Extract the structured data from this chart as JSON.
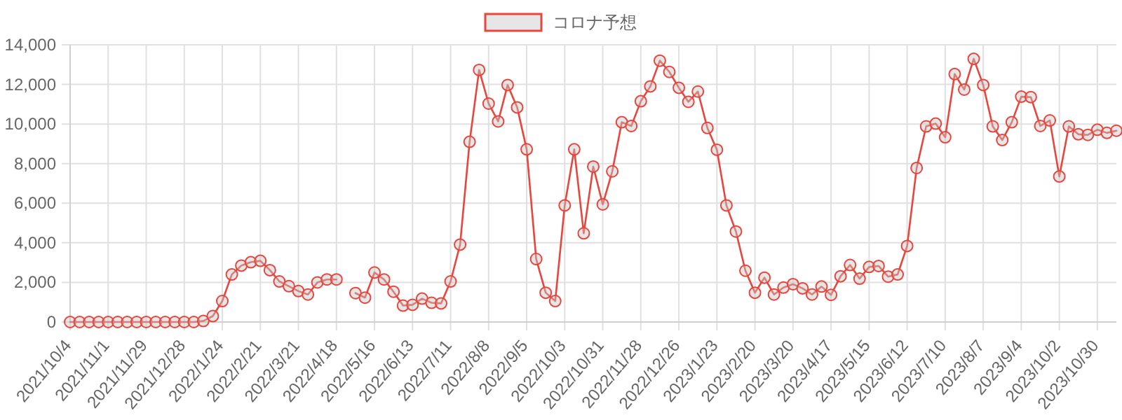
{
  "chart_data": {
    "type": "line",
    "categories": [
      "2021/10/4",
      null,
      null,
      null,
      "2021/11/1",
      null,
      null,
      null,
      "2021/11/29",
      null,
      null,
      null,
      "2021/12/28",
      null,
      null,
      null,
      "2022/1/24",
      null,
      null,
      null,
      "2022/2/21",
      null,
      null,
      null,
      "2022/3/21",
      null,
      null,
      null,
      "2022/4/18",
      null,
      null,
      null,
      "2022/5/16",
      null,
      null,
      null,
      "2022/6/13",
      null,
      null,
      null,
      "2022/7/11",
      null,
      null,
      null,
      "2022/8/8",
      null,
      null,
      null,
      "2022/9/5",
      null,
      null,
      null,
      "2022/10/3",
      null,
      null,
      null,
      "2022/10/31",
      null,
      null,
      null,
      "2022/11/28",
      null,
      null,
      null,
      "2022/12/26",
      null,
      null,
      null,
      "2023/1/23",
      null,
      null,
      null,
      "2023/2/20",
      null,
      null,
      null,
      "2023/3/20",
      null,
      null,
      null,
      "2023/4/17",
      null,
      null,
      null,
      "2023/5/15",
      null,
      null,
      null,
      "2023/6/12",
      null,
      null,
      null,
      "2023/7/10",
      null,
      null,
      null,
      "2023/8/7",
      null,
      null,
      null,
      "2023/9/4",
      null,
      null,
      null,
      "2023/10/2",
      null,
      null,
      null,
      "2023/10/30",
      null,
      null
    ],
    "series": [
      {
        "name": "コロナ予想",
        "color": "#e8453c",
        "values": [
          0,
          0,
          0,
          0,
          0,
          0,
          0,
          0,
          0,
          0,
          0,
          0,
          0,
          0,
          50,
          300,
          1060,
          2400,
          2850,
          3020,
          3090,
          2620,
          2050,
          1810,
          1560,
          1390,
          2000,
          2150,
          2150,
          null,
          1460,
          1230,
          2500,
          2150,
          1530,
          830,
          870,
          1180,
          970,
          940,
          2050,
          3910,
          9100,
          12730,
          11030,
          10130,
          11970,
          10840,
          8720,
          3180,
          1480,
          1060,
          5890,
          8720,
          4480,
          7850,
          5940,
          7610,
          10090,
          9900,
          11150,
          11900,
          13200,
          12630,
          11830,
          11120,
          11640,
          9800,
          8700,
          5890,
          4570,
          2590,
          1480,
          2240,
          1390,
          1740,
          1910,
          1700,
          1390,
          1790,
          1370,
          2310,
          2880,
          2190,
          2780,
          2830,
          2290,
          2400,
          3840,
          7780,
          9880,
          10020,
          9330,
          12520,
          11740,
          13290,
          11970,
          9880,
          9190,
          10090,
          11380,
          11360,
          9900,
          10180,
          7350,
          9880,
          9480,
          9450,
          9710,
          9550,
          9660
        ]
      }
    ],
    "ylim": [
      0,
      14000
    ],
    "yticks": [
      {
        "value": 0,
        "label": "0"
      },
      {
        "value": 2000,
        "label": "2,000"
      },
      {
        "value": 4000,
        "label": "4,000"
      },
      {
        "value": 6000,
        "label": "6,000"
      },
      {
        "value": 8000,
        "label": "8,000"
      },
      {
        "value": 10000,
        "label": "10,000"
      },
      {
        "value": 12000,
        "label": "12,000"
      },
      {
        "value": 14000,
        "label": "14,000"
      }
    ],
    "grid": true,
    "legend": "top",
    "marker": "circle",
    "line_style": "solid"
  }
}
